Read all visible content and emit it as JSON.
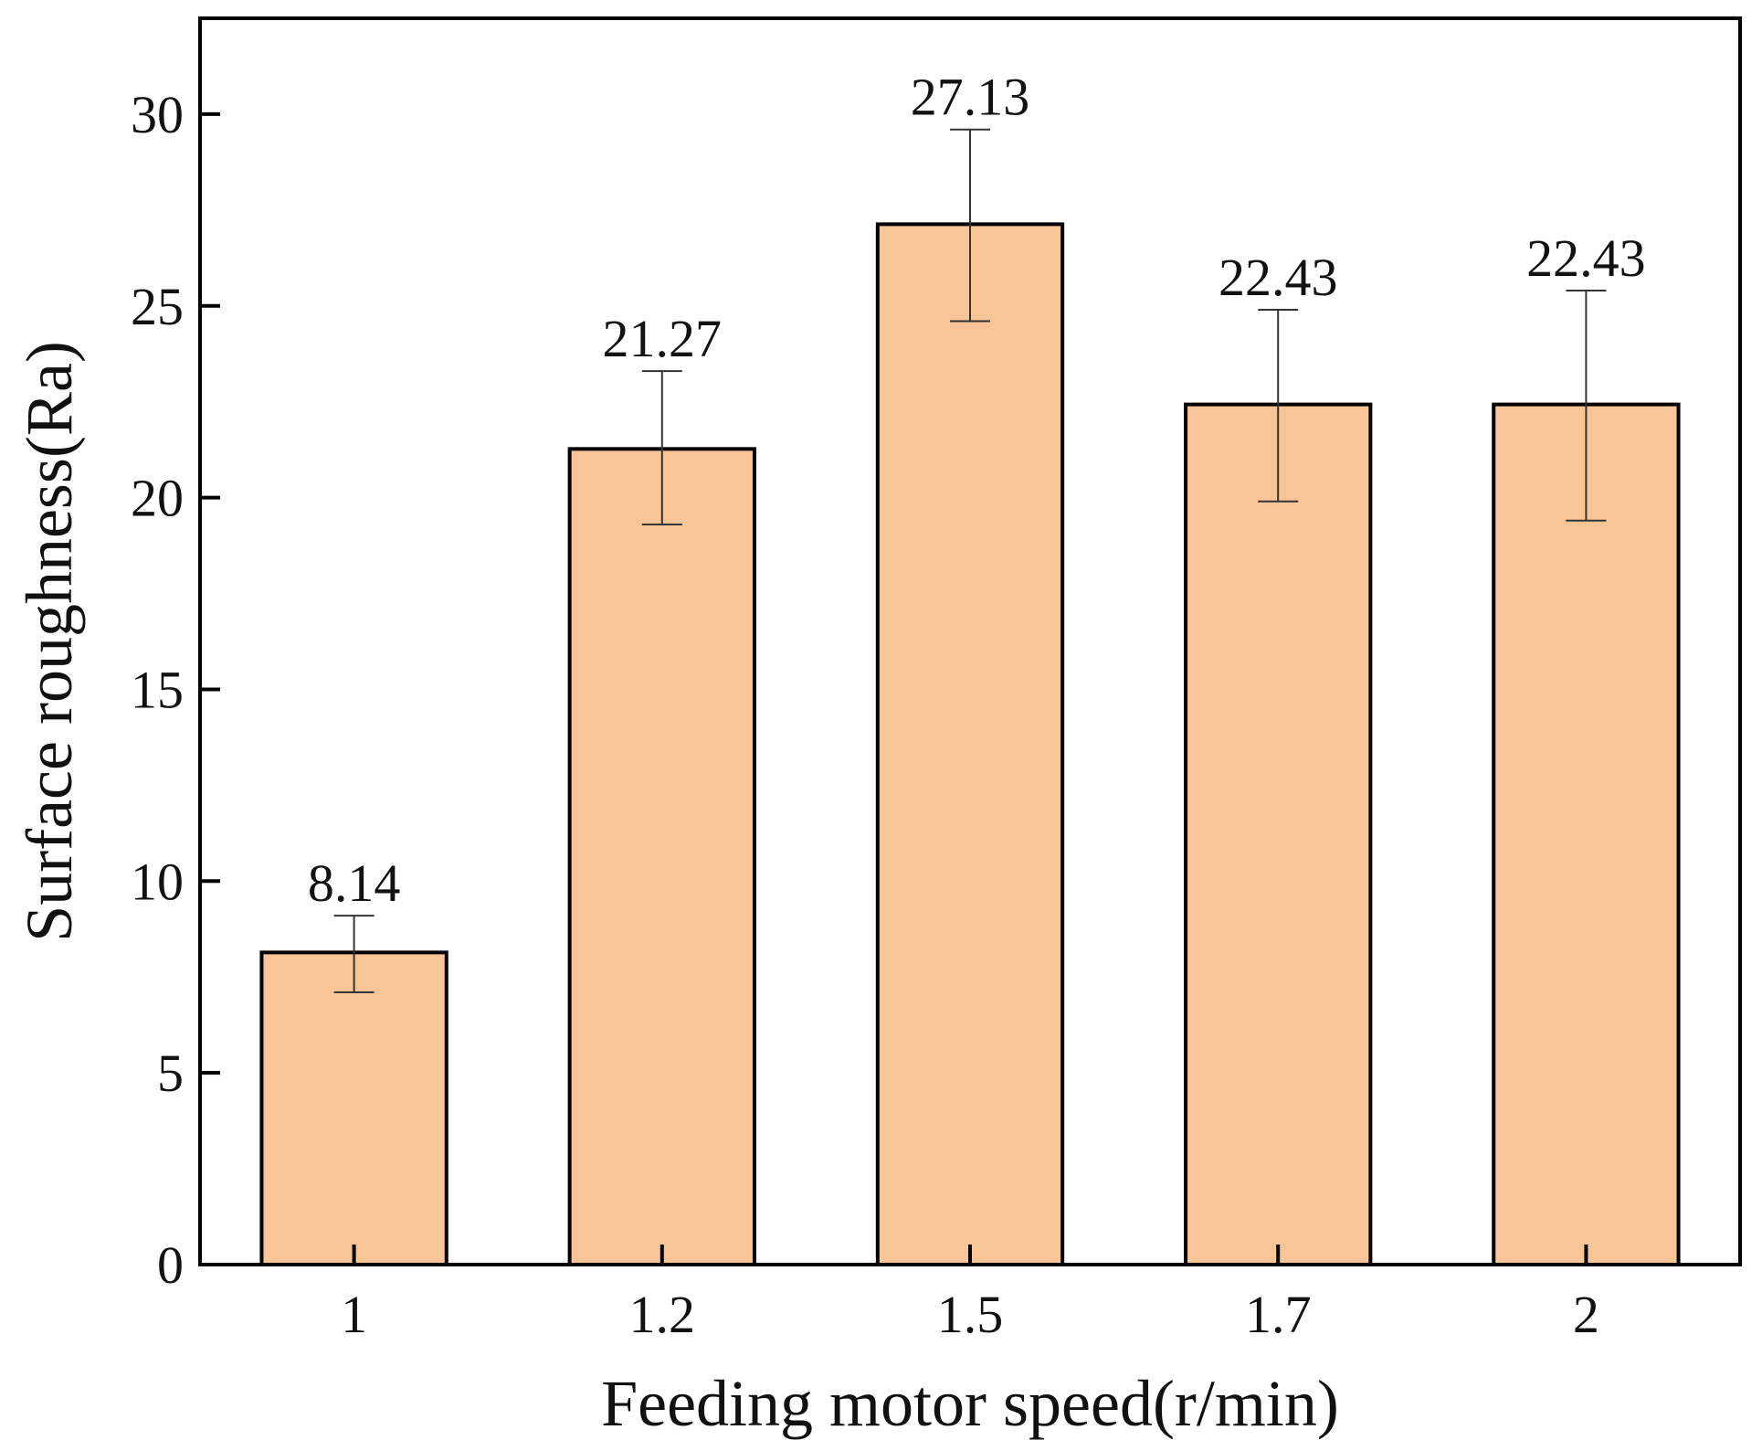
{
  "chart_data": {
    "type": "bar",
    "title": "",
    "xlabel": "Feeding motor speed(r/min)",
    "ylabel": "Surface roughness(Ra)",
    "categories": [
      "1",
      "1.2",
      "1.5",
      "1.7",
      "2"
    ],
    "values": [
      8.14,
      21.27,
      27.13,
      22.43,
      22.43
    ],
    "value_labels": [
      "8.14",
      "21.27",
      "27.13",
      "22.43",
      "22.43"
    ],
    "error_upper": [
      9.1,
      23.3,
      29.6,
      24.9,
      25.4
    ],
    "error_lower": [
      7.1,
      19.3,
      24.6,
      19.9,
      19.4
    ],
    "ylim": [
      0,
      32.5
    ],
    "yticks": [
      0,
      5,
      10,
      15,
      20,
      25,
      30
    ],
    "ytick_labels": [
      "0",
      "5",
      "10",
      "15",
      "20",
      "25",
      "30"
    ],
    "grid": false,
    "legend": "none",
    "colors": {
      "bar_fill": "#f9c596",
      "bar_stroke": "#000000",
      "axis": "#000000",
      "error_bar": "#333333"
    }
  }
}
